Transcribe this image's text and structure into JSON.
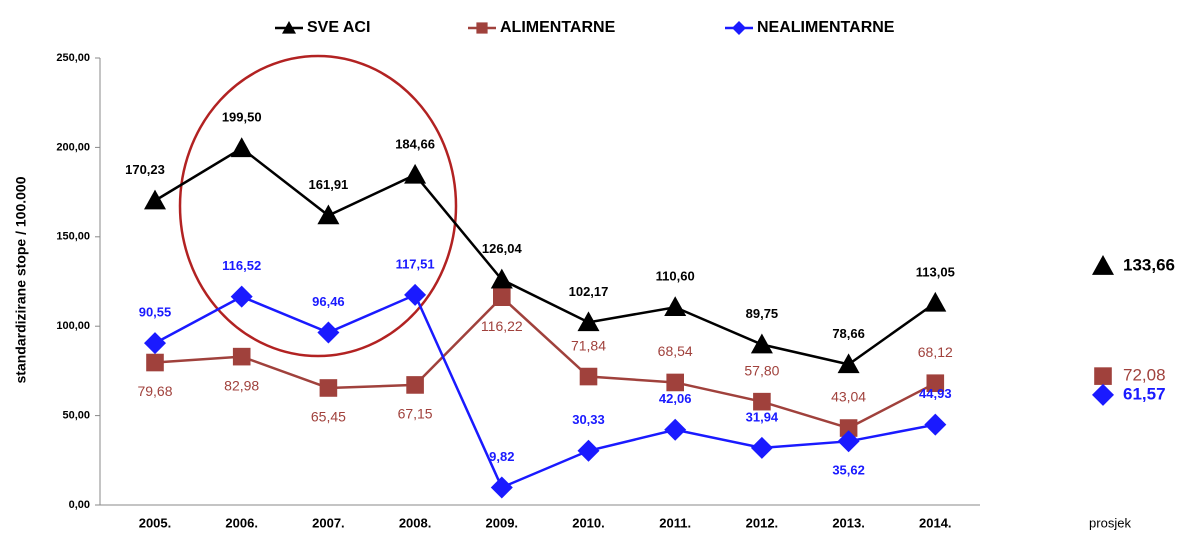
{
  "chart_data": {
    "type": "line",
    "y_label": "standardizirane stope / 100.000",
    "categories": [
      "2005.",
      "2006.",
      "2007.",
      "2008.",
      "2009.",
      "2010.",
      "2011.",
      "2012.",
      "2013.",
      "2014."
    ],
    "average_label": "prosjek",
    "ylim": [
      0,
      250
    ],
    "yticks": [
      {
        "value": 0,
        "label": "0,00"
      },
      {
        "value": 50,
        "label": "50,00"
      },
      {
        "value": 100,
        "label": "100,00"
      },
      {
        "value": 150,
        "label": "150,00"
      },
      {
        "value": 200,
        "label": "200,00"
      },
      {
        "value": 250,
        "label": "250,00"
      }
    ],
    "legend": "top",
    "series": [
      {
        "name": "SVE ACI",
        "color": "#000000",
        "marker": "triangle",
        "values": [
          170.23,
          199.5,
          161.91,
          184.66,
          126.04,
          102.17,
          110.6,
          89.75,
          78.66,
          113.05
        ],
        "value_labels": [
          "170,23",
          "199,50",
          "161,91",
          "184,66",
          "126,04",
          "102,17",
          "110,60",
          "89,75",
          "78,66",
          "113,05"
        ],
        "average": 133.66,
        "average_label": "133,66"
      },
      {
        "name": "ALIMENTARNE",
        "color": "#a0413c",
        "marker": "square",
        "values": [
          79.68,
          82.98,
          65.45,
          67.15,
          116.22,
          71.84,
          68.54,
          57.8,
          43.04,
          68.12
        ],
        "value_labels": [
          "79,68",
          "82,98",
          "65,45",
          "67,15",
          "116,22",
          "71,84",
          "68,54",
          "57,80",
          "43,04",
          "68,12"
        ],
        "average": 72.08,
        "average_label": "72,08"
      },
      {
        "name": "NEALIMENTARNE",
        "color": "#1a1aff",
        "marker": "diamond",
        "values": [
          90.55,
          116.52,
          96.46,
          117.51,
          9.82,
          30.33,
          42.06,
          31.94,
          35.62,
          44.93
        ],
        "value_labels": [
          "90,55",
          "116,52",
          "96,46",
          "117,51",
          "9,82",
          "30,33",
          "42,06",
          "31,94",
          "35,62",
          "44,93"
        ],
        "average": 61.57,
        "average_label": "61,57"
      }
    ]
  }
}
